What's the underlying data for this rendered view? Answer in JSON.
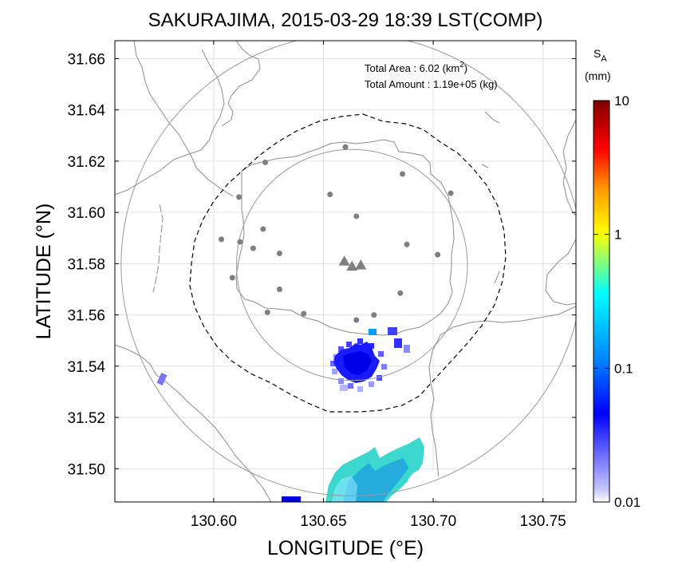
{
  "chart_data": {
    "type": "heatmap",
    "title": "SAKURAJIMA, 2015-03-29 18:39 LST(COMP)",
    "xlabel": "LONGITUDE (°E)",
    "ylabel": "LATITUDE (°N)",
    "xlim": [
      130.555,
      130.765
    ],
    "ylim": [
      31.487,
      31.667
    ],
    "x_ticks": [
      130.6,
      130.65,
      130.7,
      130.75
    ],
    "x_tick_labels": [
      "130.60",
      "130.65",
      "130.70",
      "130.75"
    ],
    "y_ticks": [
      31.5,
      31.52,
      31.54,
      31.56,
      31.58,
      31.6,
      31.62,
      31.64,
      31.66
    ],
    "y_tick_labels": [
      "31.50",
      "31.52",
      "31.54",
      "31.56",
      "31.58",
      "31.60",
      "31.62",
      "31.64",
      "31.66"
    ],
    "grid": true,
    "info": {
      "area_label": "Total Area   : 6.02 (km",
      "area_sup": "2",
      "area_close": ")",
      "amount_label": "Total Amount : 1.19e+05 (kg)"
    },
    "colorbar": {
      "label_main": "S",
      "label_sub": "A",
      "unit": "(mm)",
      "scale": "log",
      "range": [
        0.01,
        10
      ],
      "tick_labels": [
        "10",
        "1",
        "0.1",
        "0.01"
      ],
      "tick_values": [
        10,
        1,
        0.1,
        0.01
      ]
    },
    "vent": {
      "lon": 130.663,
      "lat": 31.5795
    },
    "range_circles_km": [
      5,
      10
    ],
    "stations": [
      {
        "lon": 130.66,
        "lat": 31.6255
      },
      {
        "lon": 130.6235,
        "lat": 31.6195
      },
      {
        "lon": 130.686,
        "lat": 31.615
      },
      {
        "lon": 130.6115,
        "lat": 31.606
      },
      {
        "lon": 130.653,
        "lat": 31.607
      },
      {
        "lon": 130.708,
        "lat": 31.6075
      },
      {
        "lon": 130.665,
        "lat": 31.5985
      },
      {
        "lon": 130.6035,
        "lat": 31.5895
      },
      {
        "lon": 130.6225,
        "lat": 31.5935
      },
      {
        "lon": 130.612,
        "lat": 31.5885
      },
      {
        "lon": 130.688,
        "lat": 31.5875
      },
      {
        "lon": 130.618,
        "lat": 31.586
      },
      {
        "lon": 130.63,
        "lat": 31.584
      },
      {
        "lon": 130.702,
        "lat": 31.5835
      },
      {
        "lon": 130.6085,
        "lat": 31.5745
      },
      {
        "lon": 130.63,
        "lat": 31.57
      },
      {
        "lon": 130.685,
        "lat": 31.5685
      },
      {
        "lon": 130.6245,
        "lat": 31.561
      },
      {
        "lon": 130.641,
        "lat": 31.5605
      },
      {
        "lon": 130.665,
        "lat": 31.558
      },
      {
        "lon": 130.673,
        "lat": 31.56
      }
    ],
    "craters": [
      {
        "lon": 130.6595,
        "lat": 31.581
      },
      {
        "lon": 130.663,
        "lat": 31.579
      },
      {
        "lon": 130.667,
        "lat": 31.5795
      }
    ],
    "colors": {
      "station": "#7f7f7f",
      "coast": "#8c8c8c",
      "circle": "#9a9a9a",
      "grid": "#e2e2e2",
      "colormap": [
        "#ffffff",
        "#0000ff",
        "#00ffff",
        "#ffff00",
        "#ff0000",
        "#800000"
      ]
    }
  }
}
